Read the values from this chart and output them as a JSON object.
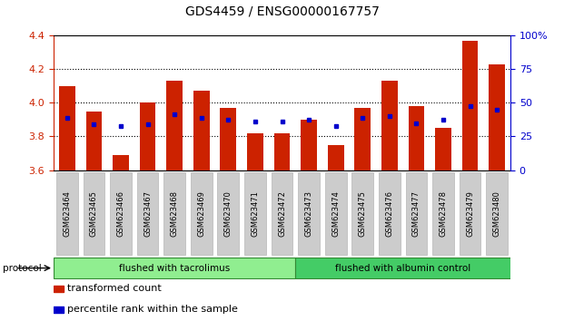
{
  "title": "GDS4459 / ENSG00000167757",
  "samples": [
    "GSM623464",
    "GSM623465",
    "GSM623466",
    "GSM623467",
    "GSM623468",
    "GSM623469",
    "GSM623470",
    "GSM623471",
    "GSM623472",
    "GSM623473",
    "GSM623474",
    "GSM623475",
    "GSM623476",
    "GSM623477",
    "GSM623478",
    "GSM623479",
    "GSM623480"
  ],
  "bar_values": [
    4.1,
    3.95,
    3.69,
    4.0,
    4.13,
    4.07,
    3.97,
    3.82,
    3.82,
    3.9,
    3.75,
    3.97,
    4.13,
    3.98,
    3.85,
    4.37,
    4.23
  ],
  "dot_values": [
    3.91,
    3.87,
    3.86,
    3.87,
    3.93,
    3.91,
    3.9,
    3.89,
    3.89,
    3.9,
    3.86,
    3.91,
    3.92,
    3.88,
    3.9,
    3.98,
    3.96
  ],
  "bar_color": "#cc2200",
  "dot_color": "#0000cc",
  "ylim": [
    3.6,
    4.4
  ],
  "yticks_left": [
    3.6,
    3.8,
    4.0,
    4.2,
    4.4
  ],
  "yticks_right": [
    0,
    25,
    50,
    75,
    100
  ],
  "ytick_labels_right": [
    "0",
    "25",
    "50",
    "75",
    "100%"
  ],
  "grid_values": [
    3.8,
    4.0,
    4.2
  ],
  "protocol_groups": [
    {
      "label": "flushed with tacrolimus",
      "start": 0,
      "end": 9,
      "color": "#90ee90"
    },
    {
      "label": "flushed with albumin control",
      "start": 9,
      "end": 17,
      "color": "#44cc66"
    }
  ],
  "protocol_label": "protocol",
  "legend_items": [
    {
      "color": "#cc2200",
      "label": "transformed count"
    },
    {
      "color": "#0000cc",
      "label": "percentile rank within the sample"
    }
  ],
  "bar_width": 0.6,
  "background_color": "#ffffff",
  "tick_label_box_color": "#cccccc",
  "title_fontsize": 10,
  "axis_fontsize": 8,
  "legend_fontsize": 8
}
